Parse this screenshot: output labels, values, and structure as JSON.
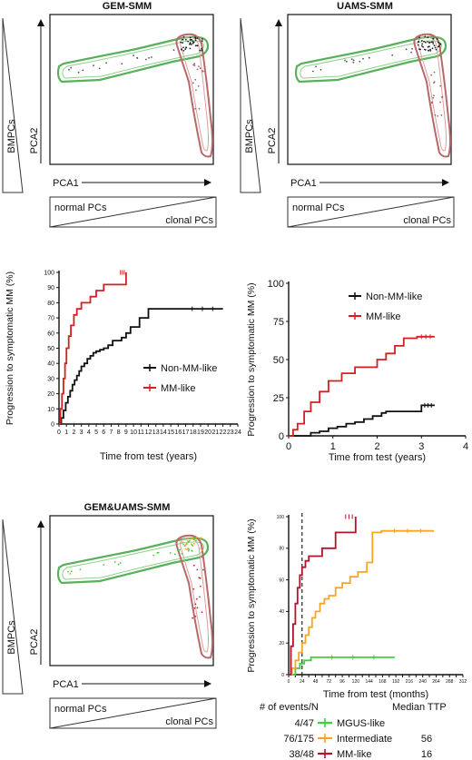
{
  "pca_panels": [
    {
      "title": "GEM-SMM",
      "side_label": "BMPCs",
      "ylabel": "PCA2",
      "xlabel": "PCA1",
      "bottom_left": "normal PCs",
      "bottom_right": "clonal PCs"
    },
    {
      "title": "UAMS-SMM",
      "side_label": "BMPCs",
      "ylabel": "PCA2",
      "xlabel": "PCA1",
      "bottom_left": "normal PCs",
      "bottom_right": "clonal PCs"
    },
    {
      "title": "GEM&UAMS-SMM",
      "side_label": "BMPCs",
      "ylabel": "PCA2",
      "xlabel": "PCA1",
      "bottom_left": "normal PCs",
      "bottom_right": "clonal PCs"
    }
  ],
  "bottom_legend": {
    "events_header": "# of events/N",
    "median_header": "Median TTP",
    "rows": [
      {
        "events": "4/47",
        "name": "MGUS-like",
        "median": "",
        "color": "#3ad13a",
        "events_color": "#e9a13a"
      },
      {
        "events": "76/175",
        "name": "Intermediate",
        "median": "56",
        "color": "#f5a623",
        "events_color": "#e9a13a"
      },
      {
        "events": "38/48",
        "name": "MM-like",
        "median": "16",
        "color": "#b3142c",
        "events_color": "#b3142c"
      }
    ]
  },
  "chart_data": [
    {
      "type": "line",
      "subtype": "step",
      "xlabel": "Time from test (years)",
      "ylabel": "Progression to symptomatic MM (%)",
      "xlim": [
        0,
        24
      ],
      "ylim": [
        0,
        100
      ],
      "xticks": [
        0,
        1,
        2,
        3,
        4,
        5,
        6,
        7,
        8,
        9,
        10,
        11,
        12,
        13,
        14,
        15,
        16,
        17,
        18,
        19,
        20,
        21,
        22,
        23,
        24
      ],
      "yticks": [
        0,
        10,
        20,
        30,
        40,
        50,
        60,
        70,
        80,
        90,
        100
      ],
      "legend_position": "right",
      "series": [
        {
          "name": "Non-MM-like",
          "color": "#111111",
          "x": [
            0,
            0.3,
            0.6,
            0.9,
            1.2,
            1.5,
            1.8,
            2.1,
            2.4,
            2.7,
            3.0,
            3.4,
            3.8,
            4.2,
            4.6,
            5.0,
            5.5,
            6.0,
            6.6,
            7.2,
            7.8,
            8.4,
            9.0,
            9.6,
            10.2,
            10.8,
            11.4,
            12.0,
            16.5,
            22.0
          ],
          "y": [
            0,
            4,
            9,
            14,
            18,
            22,
            26,
            29,
            32,
            35,
            38,
            40,
            43,
            45,
            47,
            48,
            49,
            50,
            52,
            55,
            55,
            57,
            60,
            64,
            64,
            70,
            70,
            76,
            76,
            76
          ]
        },
        {
          "name": "MM-like",
          "color": "#d32020",
          "x": [
            0,
            0.2,
            0.4,
            0.6,
            0.8,
            1.0,
            1.3,
            1.6,
            2.0,
            2.4,
            3.0,
            3.6,
            4.2,
            5.0,
            6.0,
            7.0,
            8.0,
            9.0
          ],
          "y": [
            0,
            10,
            20,
            30,
            40,
            50,
            58,
            65,
            72,
            76,
            80,
            80,
            84,
            88,
            92,
            92,
            92,
            100
          ]
        }
      ]
    },
    {
      "type": "line",
      "subtype": "step",
      "xlabel": "Time from test (years)",
      "ylabel": "Progression to symptomatic MM (%)",
      "xlim": [
        0,
        4
      ],
      "ylim": [
        0,
        100
      ],
      "xticks": [
        0,
        1,
        2,
        3,
        4
      ],
      "yticks": [
        0,
        25,
        50,
        75,
        100
      ],
      "legend_position": "top-right",
      "series": [
        {
          "name": "Non-MM-like",
          "color": "#111111",
          "x": [
            0,
            0.5,
            0.7,
            0.9,
            1.1,
            1.3,
            1.5,
            1.7,
            1.9,
            2.1,
            2.2,
            2.9,
            3.0,
            3.3
          ],
          "y": [
            0,
            2,
            3,
            5,
            6,
            8,
            9,
            11,
            13,
            15,
            16,
            16,
            20,
            20
          ]
        },
        {
          "name": "MM-like",
          "color": "#d32020",
          "x": [
            0,
            0.1,
            0.2,
            0.35,
            0.5,
            0.7,
            0.9,
            1.2,
            1.5,
            2.0,
            2.2,
            2.4,
            2.6,
            2.9,
            3.3
          ],
          "y": [
            0,
            4,
            8,
            16,
            22,
            29,
            36,
            41,
            45,
            50,
            54,
            59,
            64,
            65,
            65
          ]
        }
      ]
    },
    {
      "type": "line",
      "subtype": "step",
      "xlabel": "Time from test (months)",
      "ylabel": "Progression to symptomatic MM (%)",
      "xlim": [
        0,
        312
      ],
      "ylim": [
        0,
        100
      ],
      "xticks": [
        0,
        12,
        24,
        36,
        48,
        60,
        72,
        84,
        96,
        108,
        120,
        132,
        144,
        156,
        168,
        180,
        192,
        204,
        216,
        228,
        240,
        252,
        264,
        276,
        288,
        300,
        312
      ],
      "xtick_labels_shown": [
        0,
        24,
        48,
        72,
        96,
        120,
        144,
        168,
        192,
        216,
        240,
        264,
        288,
        312
      ],
      "yticks": [
        0,
        20,
        40,
        60,
        80,
        100
      ],
      "reference_line_x": 24,
      "series": [
        {
          "name": "MGUS-like",
          "color": "#3ad13a",
          "x": [
            0,
            12,
            20,
            28,
            40,
            190
          ],
          "y": [
            0,
            4,
            7,
            9,
            11,
            11
          ]
        },
        {
          "name": "Intermediate",
          "color": "#f5a623",
          "x": [
            0,
            6,
            12,
            18,
            24,
            30,
            36,
            42,
            48,
            56,
            64,
            72,
            84,
            96,
            110,
            124,
            140,
            150,
            166,
            260
          ],
          "y": [
            0,
            4,
            9,
            14,
            20,
            25,
            30,
            36,
            40,
            45,
            48,
            50,
            55,
            58,
            62,
            65,
            71,
            90,
            91,
            91
          ]
        },
        {
          "name": "MM-like",
          "color": "#b3142c",
          "x": [
            0,
            4,
            8,
            12,
            16,
            20,
            24,
            30,
            36,
            48,
            60,
            84,
            96,
            120
          ],
          "y": [
            0,
            18,
            32,
            45,
            55,
            63,
            68,
            72,
            75,
            75,
            80,
            90,
            90,
            100
          ]
        }
      ]
    }
  ]
}
